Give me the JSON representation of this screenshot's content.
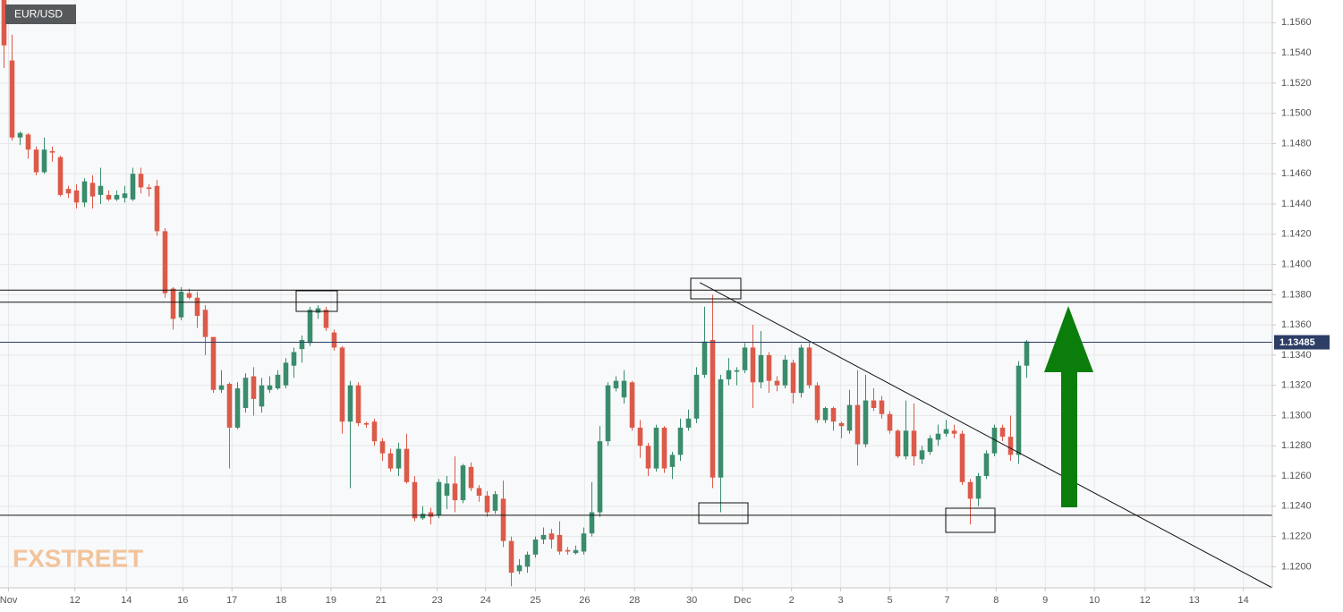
{
  "chart_data": {
    "type": "candlestick",
    "title": "EUR/USD",
    "watermark": "FXSTREET",
    "up_color": "#3a8c6c",
    "down_color": "#dc5a49",
    "xlim": [
      -0.5,
      157.5
    ],
    "ylim": [
      1.1186,
      1.1575
    ],
    "grid": true,
    "xticks": [
      {
        "value": 0.56,
        "label": "Nov"
      },
      {
        "value": 8.8,
        "label": "12"
      },
      {
        "value": 15.2,
        "label": "14"
      },
      {
        "value": 22.2,
        "label": "16"
      },
      {
        "value": 28.3,
        "label": "17"
      },
      {
        "value": 34.4,
        "label": "18"
      },
      {
        "value": 40.6,
        "label": "19"
      },
      {
        "value": 46.8,
        "label": "21"
      },
      {
        "value": 53.8,
        "label": "23"
      },
      {
        "value": 59.8,
        "label": "24"
      },
      {
        "value": 66,
        "label": "25"
      },
      {
        "value": 72.1,
        "label": "26"
      },
      {
        "value": 78.3,
        "label": "28"
      },
      {
        "value": 85.4,
        "label": "30"
      },
      {
        "value": 91.7,
        "label": "Dec"
      },
      {
        "value": 97.8,
        "label": "2"
      },
      {
        "value": 103.9,
        "label": "3"
      },
      {
        "value": 110,
        "label": "5"
      },
      {
        "value": 117.1,
        "label": "7"
      },
      {
        "value": 123.2,
        "label": "8"
      },
      {
        "value": 129.3,
        "label": "9"
      },
      {
        "value": 135.4,
        "label": "10"
      },
      {
        "value": 141.7,
        "label": "12"
      },
      {
        "value": 147.8,
        "label": "13"
      },
      {
        "value": 153.9,
        "label": "14"
      }
    ],
    "yticks": [
      {
        "value": 1.12,
        "label": "1.1200"
      },
      {
        "value": 1.122,
        "label": "1.1220"
      },
      {
        "value": 1.124,
        "label": "1.1240"
      },
      {
        "value": 1.126,
        "label": "1.1260"
      },
      {
        "value": 1.128,
        "label": "1.1280"
      },
      {
        "value": 1.13,
        "label": "1.1300"
      },
      {
        "value": 1.132,
        "label": "1.1320"
      },
      {
        "value": 1.134,
        "label": "1.1340"
      },
      {
        "value": 1.136,
        "label": "1.1360"
      },
      {
        "value": 1.138,
        "label": "1.1380"
      },
      {
        "value": 1.14,
        "label": "1.1400"
      },
      {
        "value": 1.142,
        "label": "1.1420"
      },
      {
        "value": 1.144,
        "label": "1.1440"
      },
      {
        "value": 1.146,
        "label": "1.1460"
      },
      {
        "value": 1.148,
        "label": "1.1480"
      },
      {
        "value": 1.15,
        "label": "1.1500"
      },
      {
        "value": 1.152,
        "label": "1.1520"
      },
      {
        "value": 1.154,
        "label": "1.1540"
      },
      {
        "value": 1.156,
        "label": "1.1560"
      }
    ],
    "last_price": 1.13485,
    "last_price_color": "#2c3d66",
    "levels": [
      1.1383,
      1.1375,
      1.1234
    ],
    "trendline": {
      "x": [
        86.4,
        157.5
      ],
      "y": [
        1.1388,
        1.1186
      ]
    },
    "open": [
      1.1575,
      1.1535,
      1.1484,
      1.1486,
      1.1476,
      1.1461,
      1.1475,
      1.1471,
      1.145,
      1.1449,
      1.1441,
      1.1454,
      1.1446,
      1.1446,
      1.1443,
      1.1444,
      1.1443,
      1.146,
      1.1451,
      1.1452,
      1.1422,
      1.1384,
      1.1365,
      1.1381,
      1.1378,
      1.137,
      1.1352,
      1.1317,
      1.1321,
      1.1292,
      1.1305,
      1.1326,
      1.1306,
      1.1317,
      1.1318,
      1.132,
      1.1333,
      1.1344,
      1.1348,
      1.1368,
      1.137,
      1.1355,
      1.1345,
      1.1296,
      1.132,
      1.1295,
      1.1296,
      1.1283,
      1.1275,
      1.1265,
      1.1278,
      1.1256,
      1.1232,
      1.1236,
      1.1234,
      1.1247,
      1.1255,
      1.1244,
      1.1266,
      1.1252,
      1.1247,
      1.1237,
      1.1245,
      1.1217,
      1.1197,
      1.12,
      1.1208,
      1.1218,
      1.1222,
      1.1221,
      1.1211,
      1.1209,
      1.121,
      1.1222,
      1.1236,
      1.1283,
      1.1318,
      1.1312,
      1.1322,
      1.1292,
      1.128,
      1.1265,
      1.1292,
      1.1266,
      1.1274,
      1.1292,
      1.1298,
      1.1327,
      1.135,
      1.1259,
      1.1324,
      1.1329,
      1.133,
      1.1345,
      1.1322,
      1.134,
      1.1323,
      1.132,
      1.1335,
      1.1315,
      1.1345,
      1.132,
      1.1297,
      1.1305,
      1.1295,
      1.129,
      1.1307,
      1.1281,
      1.131,
      1.131,
      1.1301,
      1.129,
      1.1273,
      1.129,
      1.1271,
      1.1276,
      1.1284,
      1.1288,
      1.129,
      1.1288,
      1.1256,
      1.1245,
      1.126,
      1.1275,
      1.1292,
      1.1286,
      1.1274,
      1.1333
    ],
    "high": [
      1.1578,
      1.1552,
      1.1488,
      1.1487,
      1.1478,
      1.1484,
      1.1478,
      1.1472,
      1.1452,
      1.1453,
      1.1457,
      1.1459,
      1.1464,
      1.1449,
      1.1449,
      1.1452,
      1.1464,
      1.1464,
      1.1453,
      1.1456,
      1.1424,
      1.1385,
      1.1385,
      1.1384,
      1.1382,
      1.1373,
      1.1352,
      1.133,
      1.1322,
      1.1322,
      1.1328,
      1.1332,
      1.1325,
      1.1326,
      1.133,
      1.1338,
      1.1345,
      1.1353,
      1.1372,
      1.1373,
      1.1372,
      1.1357,
      1.1346,
      1.1323,
      1.1322,
      1.1296,
      1.1298,
      1.1285,
      1.1278,
      1.1282,
      1.1288,
      1.126,
      1.124,
      1.1239,
      1.1258,
      1.126,
      1.1273,
      1.1268,
      1.1269,
      1.1254,
      1.125,
      1.125,
      1.1257,
      1.122,
      1.1205,
      1.121,
      1.122,
      1.1226,
      1.1225,
      1.123,
      1.1213,
      1.1214,
      1.1226,
      1.1256,
      1.1293,
      1.1322,
      1.1326,
      1.133,
      1.1323,
      1.1297,
      1.1282,
      1.1294,
      1.1293,
      1.1276,
      1.1298,
      1.1304,
      1.1332,
      1.1372,
      1.138,
      1.1327,
      1.1338,
      1.1332,
      1.1348,
      1.136,
      1.1356,
      1.1342,
      1.1326,
      1.134,
      1.1337,
      1.1347,
      1.1348,
      1.1322,
      1.1306,
      1.1306,
      1.1296,
      1.1317,
      1.133,
      1.1327,
      1.1318,
      1.1313,
      1.1303,
      1.1291,
      1.131,
      1.1308,
      1.128,
      1.1287,
      1.1294,
      1.1297,
      1.1294,
      1.129,
      1.1258,
      1.1262,
      1.1277,
      1.1294,
      1.1294,
      1.13,
      1.1336,
      1.135
    ],
    "low": [
      1.153,
      1.1482,
      1.1479,
      1.147,
      1.1459,
      1.146,
      1.1468,
      1.1445,
      1.1444,
      1.1437,
      1.1438,
      1.1437,
      1.144,
      1.1442,
      1.1442,
      1.1441,
      1.1442,
      1.1447,
      1.1445,
      1.1419,
      1.1378,
      1.1357,
      1.1363,
      1.1377,
      1.1358,
      1.134,
      1.1315,
      1.1315,
      1.1265,
      1.1291,
      1.1302,
      1.13,
      1.1302,
      1.1315,
      1.1317,
      1.1318,
      1.1325,
      1.1335,
      1.1346,
      1.1364,
      1.1356,
      1.1343,
      1.1288,
      1.1252,
      1.1293,
      1.1292,
      1.128,
      1.127,
      1.1263,
      1.126,
      1.1255,
      1.123,
      1.1231,
      1.1228,
      1.1232,
      1.1238,
      1.1236,
      1.1242,
      1.125,
      1.1243,
      1.1233,
      1.1235,
      1.1213,
      1.1187,
      1.1195,
      1.1196,
      1.1206,
      1.1215,
      1.1212,
      1.1208,
      1.1208,
      1.1208,
      1.1208,
      1.122,
      1.1233,
      1.128,
      1.1316,
      1.1308,
      1.129,
      1.1272,
      1.126,
      1.1263,
      1.1262,
      1.1258,
      1.127,
      1.129,
      1.1295,
      1.1325,
      1.1252,
      1.1236,
      1.132,
      1.132,
      1.1328,
      1.1305,
      1.1318,
      1.1315,
      1.1316,
      1.1318,
      1.1308,
      1.1312,
      1.1318,
      1.1295,
      1.1295,
      1.129,
      1.1285,
      1.1288,
      1.1267,
      1.1279,
      1.1303,
      1.1298,
      1.1288,
      1.1272,
      1.1271,
      1.1267,
      1.1268,
      1.1274,
      1.128,
      1.1286,
      1.1285,
      1.1254,
      1.1228,
      1.124,
      1.1258,
      1.1273,
      1.1283,
      1.127,
      1.1268,
      1.1325
    ],
    "close": [
      1.1545,
      1.1484,
      1.1487,
      1.1476,
      1.1461,
      1.1476,
      1.1474,
      1.1446,
      1.1447,
      1.1441,
      1.1455,
      1.1445,
      1.1452,
      1.1443,
      1.1446,
      1.1447,
      1.146,
      1.1451,
      1.145,
      1.1422,
      1.1381,
      1.1364,
      1.1382,
      1.1378,
      1.1366,
      1.1352,
      1.1317,
      1.132,
      1.1292,
      1.1318,
      1.1325,
      1.1311,
      1.132,
      1.132,
      1.1327,
      1.1335,
      1.1342,
      1.135,
      1.137,
      1.1371,
      1.1358,
      1.1345,
      1.1296,
      1.132,
      1.1295,
      1.1294,
      1.1283,
      1.1275,
      1.1265,
      1.1278,
      1.1256,
      1.1232,
      1.1235,
      1.1233,
      1.1256,
      1.1255,
      1.1244,
      1.1267,
      1.1252,
      1.1247,
      1.1236,
      1.1248,
      1.1217,
      1.1196,
      1.1201,
      1.1208,
      1.1218,
      1.1221,
      1.1218,
      1.121,
      1.121,
      1.1211,
      1.1222,
      1.1236,
      1.1283,
      1.132,
      1.1323,
      1.1323,
      1.1292,
      1.128,
      1.1265,
      1.1292,
      1.1265,
      1.1274,
      1.1292,
      1.1298,
      1.1327,
      1.1349,
      1.1259,
      1.1324,
      1.133,
      1.133,
      1.1345,
      1.1322,
      1.134,
      1.1323,
      1.132,
      1.1337,
      1.1315,
      1.1345,
      1.132,
      1.1297,
      1.1305,
      1.1296,
      1.1293,
      1.1307,
      1.1281,
      1.131,
      1.1305,
      1.1301,
      1.129,
      1.1273,
      1.129,
      1.1273,
      1.1277,
      1.1285,
      1.1288,
      1.1291,
      1.1288,
      1.1256,
      1.1245,
      1.126,
      1.1275,
      1.1292,
      1.1286,
      1.1274,
      1.1333,
      1.1349
    ]
  }
}
